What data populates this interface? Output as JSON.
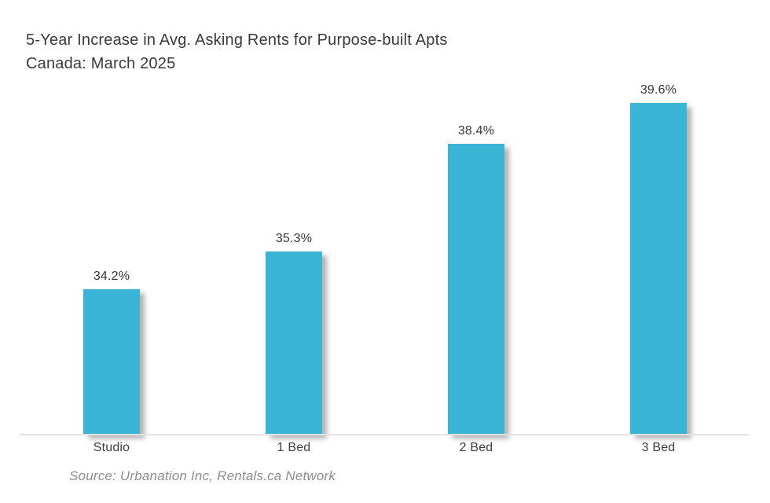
{
  "header": {
    "title_line1": "5-Year Increase in Avg. Asking Rents for Purpose-built Apts",
    "title_line2": "Canada: March 2025"
  },
  "footer": {
    "source": "Source: Urbanation Inc, Rentals.ca Network"
  },
  "chart_data": {
    "type": "bar",
    "title": "5-Year Increase in Avg. Asking Rents for Purpose-built Apts",
    "subtitle": "Canada: March 2025",
    "categories": [
      "Studio",
      "1 Bed",
      "2 Bed",
      "3 Bed"
    ],
    "values": [
      34.2,
      35.3,
      38.4,
      39.6
    ],
    "value_labels": [
      "34.2%",
      "35.3%",
      "38.4%",
      "39.6%"
    ],
    "xlabel": "",
    "ylabel": "",
    "ylim": [
      30,
      42
    ],
    "grid": false,
    "legend": "none",
    "bar_color": "#3bb5d6",
    "baseline_color": "#e3e3e3",
    "label_color": "#353535",
    "source": "Source: Urbanation Inc, Rentals.ca Network"
  }
}
